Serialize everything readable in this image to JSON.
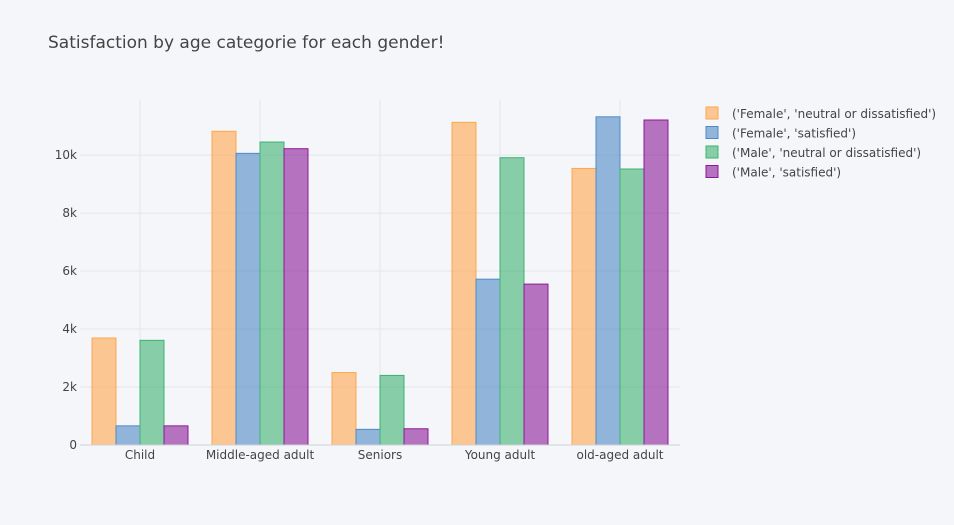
{
  "chart_data": {
    "type": "bar",
    "title": "Satisfaction by age categorie for each gender!",
    "xlabel": "",
    "ylabel": "",
    "categories": [
      "Child",
      "Middle-aged adult",
      "Seniors",
      "Young adult",
      "old-aged adult"
    ],
    "series": [
      {
        "name": "('Female', 'neutral or dissatisfied')",
        "color": "#ffa64d",
        "values": [
          3690,
          10820,
          2500,
          11130,
          9540
        ]
      },
      {
        "name": "('Female', 'satisfied')",
        "color": "#4f8ac5",
        "values": [
          660,
          10060,
          540,
          5720,
          11320
        ]
      },
      {
        "name": "('Male', 'neutral or dissatisfied')",
        "color": "#3cb371",
        "values": [
          3610,
          10450,
          2400,
          9910,
          9520
        ]
      },
      {
        "name": "('Male', 'satisfied')",
        "color": "#8b1a96",
        "values": [
          660,
          10220,
          560,
          5550,
          11210
        ]
      }
    ],
    "ylim": [
      0,
      11900
    ],
    "yticks": [
      0,
      2000,
      4000,
      6000,
      8000,
      10000
    ],
    "ytick_labels": [
      "0",
      "2k",
      "4k",
      "6k",
      "8k",
      "10k"
    ],
    "grid": true,
    "legend_position": "top-right"
  }
}
